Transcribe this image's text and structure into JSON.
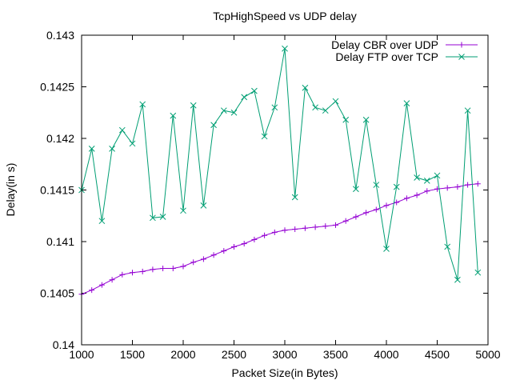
{
  "chart_data": {
    "type": "line",
    "title": "TcpHighSpeed vs UDP delay",
    "xlabel": "Packet Size(in Bytes)",
    "ylabel": "Delay(in s)",
    "xlim": [
      1000,
      5000
    ],
    "ylim": [
      0.14,
      0.143
    ],
    "x_ticks": [
      1000,
      1500,
      2000,
      2500,
      3000,
      3500,
      4000,
      4500,
      5000
    ],
    "x_tick_labels": [
      "1000",
      "1500",
      "2000",
      "2500",
      "3000",
      "3500",
      "4000",
      "4500",
      "5000"
    ],
    "y_ticks": [
      0.14,
      0.1405,
      0.141,
      0.1415,
      0.142,
      0.1425,
      0.143
    ],
    "y_tick_labels": [
      "0.14",
      "0.1405",
      "0.141",
      "0.1415",
      "0.142",
      "0.1425",
      "0.143"
    ],
    "grid": false,
    "legend_position": "top-right",
    "x": [
      1000,
      1100,
      1200,
      1300,
      1400,
      1500,
      1600,
      1700,
      1800,
      1900,
      2000,
      2100,
      2200,
      2300,
      2400,
      2500,
      2600,
      2700,
      2800,
      2900,
      3000,
      3100,
      3200,
      3300,
      3400,
      3500,
      3600,
      3700,
      3800,
      3900,
      4000,
      4100,
      4200,
      4300,
      4400,
      4500,
      4600,
      4700,
      4800,
      4900
    ],
    "series": [
      {
        "name": "Delay CBR over UDP",
        "color": "#9400d3",
        "marker": "plus",
        "values": [
          0.14049,
          0.14053,
          0.14058,
          0.14063,
          0.14068,
          0.1407,
          0.14071,
          0.14073,
          0.14074,
          0.14074,
          0.14076,
          0.1408,
          0.14083,
          0.14087,
          0.14091,
          0.14095,
          0.14098,
          0.14102,
          0.14106,
          0.14109,
          0.14111,
          0.14112,
          0.14113,
          0.14114,
          0.14115,
          0.14116,
          0.1412,
          0.14124,
          0.14128,
          0.14131,
          0.14135,
          0.14138,
          0.14142,
          0.14145,
          0.14149,
          0.14151,
          0.14152,
          0.14153,
          0.14155,
          0.14156
        ]
      },
      {
        "name": "Delay FTP over TCP",
        "color": "#009e73",
        "marker": "x",
        "values": [
          0.1415,
          0.1419,
          0.1412,
          0.1419,
          0.14208,
          0.14195,
          0.14233,
          0.14123,
          0.14124,
          0.14222,
          0.1413,
          0.14232,
          0.14135,
          0.14213,
          0.14227,
          0.14225,
          0.1424,
          0.14246,
          0.14202,
          0.1423,
          0.14287,
          0.14143,
          0.14249,
          0.1423,
          0.14227,
          0.14236,
          0.14218,
          0.14151,
          0.14218,
          0.14155,
          0.14093,
          0.14153,
          0.14234,
          0.14162,
          0.14159,
          0.14164,
          0.14095,
          0.14063,
          0.14227,
          0.1407
        ]
      }
    ]
  }
}
